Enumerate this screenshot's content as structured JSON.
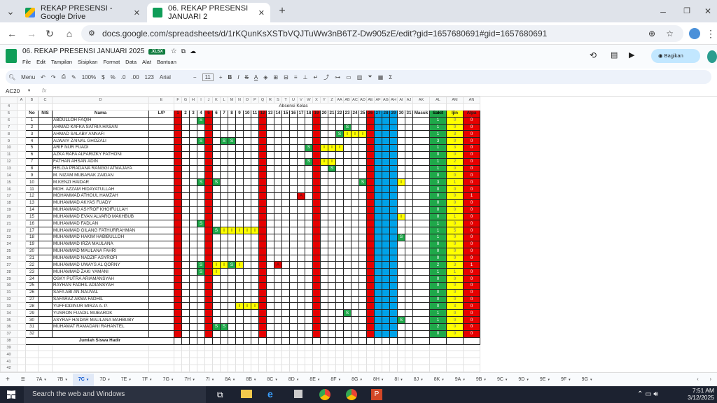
{
  "browser": {
    "tabs": [
      {
        "label": "REKAP PRESENSI - Google Drive",
        "active": false
      },
      {
        "label": "06. REKAP PRESENSI JANUARI 2",
        "active": true
      }
    ],
    "url": "docs.google.com/spreadsheets/d/1rKQunKsXSTbVQJTuWw3nB6TZ-Dw905zE/edit?gid=1657680691#gid=1657680691"
  },
  "doc": {
    "title": "06. REKAP PRESENSI JANUARI 2025",
    "badge": ".XLSX",
    "menus": [
      "File",
      "Edit",
      "Tampilan",
      "Sisipkan",
      "Format",
      "Data",
      "Alat",
      "Bantuan"
    ],
    "share": "Bagikan"
  },
  "toolbar": {
    "menu": "Menu",
    "zoom": "100%",
    "currency": "$",
    "percent": "%",
    "dec1": ".0",
    "dec2": ".00",
    "num": "123",
    "font": "Arial",
    "size": "11"
  },
  "formula": {
    "cell": "AC20",
    "fx": "fx"
  },
  "sheet": {
    "section_title": "Absensi Kelas",
    "headers": {
      "no": "No",
      "nis": "NIS",
      "nama": "Nama",
      "lp": "L/P",
      "masuk": "Masuk",
      "sakit": "Sakit",
      "ijin": "Ijin",
      "alpa": "Alpa"
    },
    "days": [
      "1",
      "2",
      "3",
      "4",
      "5",
      "6",
      "7",
      "8",
      "9",
      "10",
      "11",
      "12",
      "13",
      "14",
      "15",
      "16",
      "17",
      "18",
      "19",
      "20",
      "21",
      "22",
      "23",
      "24",
      "25",
      "26",
      "27",
      "28",
      "29",
      "30",
      "31"
    ],
    "col_letters": [
      "A",
      "B",
      "C",
      "D",
      "E",
      "F",
      "G",
      "H",
      "I",
      "J",
      "K",
      "L",
      "M",
      "N",
      "O",
      "P",
      "Q",
      "R",
      "S",
      "T",
      "U",
      "V",
      "W",
      "X",
      "Y",
      "Z",
      "AA",
      "AB",
      "AC",
      "AD",
      "AE",
      "AF",
      "AG",
      "AH",
      "AI",
      "AJ",
      "AK",
      "AL",
      "AM",
      "AN"
    ],
    "footer": "Jumlah Siswa Hadir",
    "students": [
      {
        "no": "1",
        "name": "ABDULLOH FAQIH",
        "marks": {
          "4": "S"
        },
        "sakit": "1",
        "ijin": "0",
        "alpa": "0"
      },
      {
        "no": "2",
        "name": "AHMAD KAFKA SATRIA HASAN",
        "marks": {
          "23": "S"
        },
        "sakit": "1",
        "ijin": "0",
        "alpa": "0"
      },
      {
        "no": "3",
        "name": "AHMAD SALABY ANNAFI",
        "marks": {
          "22": "S",
          "23": "I",
          "24": "I",
          "25": "I"
        },
        "sakit": "1",
        "ijin": "3",
        "alpa": "0"
      },
      {
        "no": "4",
        "name": "ALWAIY ZAINAL GHOZALI",
        "marks": {
          "4": "S",
          "7": "S",
          "8": "S"
        },
        "sakit": "3",
        "ijin": "0",
        "alpa": "0"
      },
      {
        "no": "5",
        "name": "ARIF NUR FUADI",
        "marks": {
          "18": "S",
          "20": "I",
          "21": "I",
          "22": "I"
        },
        "sakit": "1",
        "ijin": "3",
        "alpa": "0"
      },
      {
        "no": "6",
        "name": "AZKA RAFA ALFARIZKY FATHONI",
        "marks": {},
        "sakit": "0",
        "ijin": "0",
        "alpa": "0"
      },
      {
        "no": "7",
        "name": "FATHAN AHSAN ADIN",
        "marks": {
          "18": "S",
          "20": "I",
          "21": "I"
        },
        "sakit": "1",
        "ijin": "2",
        "alpa": "0"
      },
      {
        "no": "8",
        "name": "HELGA PRADANA RANGGI ATMAJAYA",
        "marks": {
          "21": "S"
        },
        "sakit": "1",
        "ijin": "0",
        "alpa": "0"
      },
      {
        "no": "9",
        "name": "M. NIZAM MUBARAK ZAIDAN",
        "marks": {},
        "sakit": "0",
        "ijin": "0",
        "alpa": "0"
      },
      {
        "no": "10",
        "name": "M.KENZI HAIDAR",
        "marks": {
          "4": "S",
          "6": "S",
          "25": "S",
          "30": "I"
        },
        "sakit": "3",
        "ijin": "1",
        "alpa": "0"
      },
      {
        "no": "11",
        "name": "MOH. AZZAM HIDAYATULLAH",
        "marks": {},
        "sakit": "0",
        "ijin": "0",
        "alpa": "0"
      },
      {
        "no": "12",
        "name": "MOHAMMAD ATHOUL HAMZAH",
        "marks": {
          "17": "A"
        },
        "sakit": "0",
        "ijin": "0",
        "alpa": "1"
      },
      {
        "no": "13",
        "name": "MUHAMMAD AKYAS FUADY",
        "marks": {},
        "sakit": "0",
        "ijin": "0",
        "alpa": "0"
      },
      {
        "no": "14",
        "name": "MUHAMMAD ASYROF KHOIFULLAH",
        "marks": {},
        "sakit": "0",
        "ijin": "0",
        "alpa": "0"
      },
      {
        "no": "15",
        "name": "MUHAMMAD EVAN ALVARO MAKHBUB",
        "marks": {
          "30": "I"
        },
        "sakit": "0",
        "ijin": "1",
        "alpa": "0"
      },
      {
        "no": "16",
        "name": "MUHAMMAD FADLAN",
        "marks": {
          "4": "S"
        },
        "sakit": "1",
        "ijin": "0",
        "alpa": "0"
      },
      {
        "no": "17",
        "name": "MUHAMMAD GILANG FATHURRAHMAN",
        "marks": {
          "6": "S",
          "7": "I",
          "8": "I",
          "9": "I",
          "10": "I",
          "11": "I"
        },
        "sakit": "1",
        "ijin": "5",
        "alpa": "0"
      },
      {
        "no": "18",
        "name": "MUHAMMAD HAKIM HABIBULLOH",
        "marks": {
          "30": "S"
        },
        "sakit": "1",
        "ijin": "0",
        "alpa": "0"
      },
      {
        "no": "19",
        "name": "MUHAMMAD IRZA MAULANA",
        "marks": {},
        "sakit": "0",
        "ijin": "0",
        "alpa": "0"
      },
      {
        "no": "20",
        "name": "MUHAMMAD MAULANA FAHRI",
        "marks": {},
        "sakit": "0",
        "ijin": "0",
        "alpa": "0"
      },
      {
        "no": "21",
        "name": "MUHAMMAD NADZIF ASYROFI",
        "marks": {},
        "sakit": "0",
        "ijin": "0",
        "alpa": "0"
      },
      {
        "no": "22",
        "name": "MUHAMMAD UWAYS AL QORNY",
        "marks": {
          "4": "S",
          "6": "I",
          "7": "I",
          "8": "S",
          "9": "I",
          "14": "A"
        },
        "sakit": "2",
        "ijin": "3",
        "alpa": "1"
      },
      {
        "no": "23",
        "name": "MUHAMMAD ZAKI YAMANI",
        "marks": {
          "4": "S",
          "6": "I"
        },
        "sakit": "1",
        "ijin": "1",
        "alpa": "0"
      },
      {
        "no": "24",
        "name": "OSKY PUTRA ARIAMANSYAH",
        "marks": {},
        "sakit": "0",
        "ijin": "0",
        "alpa": "0"
      },
      {
        "no": "25",
        "name": "RAYHAN FADHIL ADIANSYAH",
        "marks": {},
        "sakit": "0",
        "ijin": "0",
        "alpa": "0"
      },
      {
        "no": "26",
        "name": "SAFA ABI AN-NAUVAL",
        "marks": {},
        "sakit": "0",
        "ijin": "0",
        "alpa": "0"
      },
      {
        "no": "27",
        "name": "SAFARAZ AKMA FADHIL",
        "marks": {},
        "sakit": "0",
        "ijin": "0",
        "alpa": "0"
      },
      {
        "no": "28",
        "name": "YUFFIDDINUR MIRZA A. P.",
        "marks": {
          "9": "I",
          "10": "I",
          "11": "I"
        },
        "sakit": "0",
        "ijin": "3",
        "alpa": "0"
      },
      {
        "no": "29",
        "name": "YUSRON FUADIL MUBAROK",
        "marks": {
          "23": "S"
        },
        "sakit": "1",
        "ijin": "0",
        "alpa": "0"
      },
      {
        "no": "30",
        "name": "ASYRAF HAIDAR MAULANA MAHBUBY",
        "marks": {
          "30": "S"
        },
        "sakit": "1",
        "ijin": "0",
        "alpa": "0"
      },
      {
        "no": "31",
        "name": "MUHAMAT RAMADANI RAHANTEL",
        "marks": {
          "6": "S",
          "7": "S"
        },
        "sakit": "2",
        "ijin": "0",
        "alpa": "0"
      },
      {
        "no": "32",
        "name": "",
        "marks": {},
        "sakit": "0",
        "ijin": "0",
        "alpa": "0"
      }
    ],
    "red_days": [
      "1",
      "5",
      "12",
      "19",
      "26"
    ],
    "blue_days": [
      "27",
      "28",
      "29"
    ]
  },
  "sheet_tabs": [
    "7A",
    "7B",
    "7C",
    "7D",
    "7E",
    "7F",
    "7G",
    "7H",
    "7I",
    "8A",
    "8B",
    "8C",
    "8D",
    "8E",
    "8F",
    "8G",
    "8H",
    "8I",
    "8J",
    "8K",
    "9A",
    "9B",
    "9C",
    "9D",
    "9E",
    "9F",
    "9G"
  ],
  "active_sheet": "7C",
  "taskbar": {
    "search": "Search the web and Windows",
    "time": "7:51 AM",
    "date": "3/12/2025"
  },
  "colors": {
    "red": "#e60000",
    "blue": "#00a2e8",
    "green": "#1fa84a",
    "yellow": "#ffff00"
  }
}
